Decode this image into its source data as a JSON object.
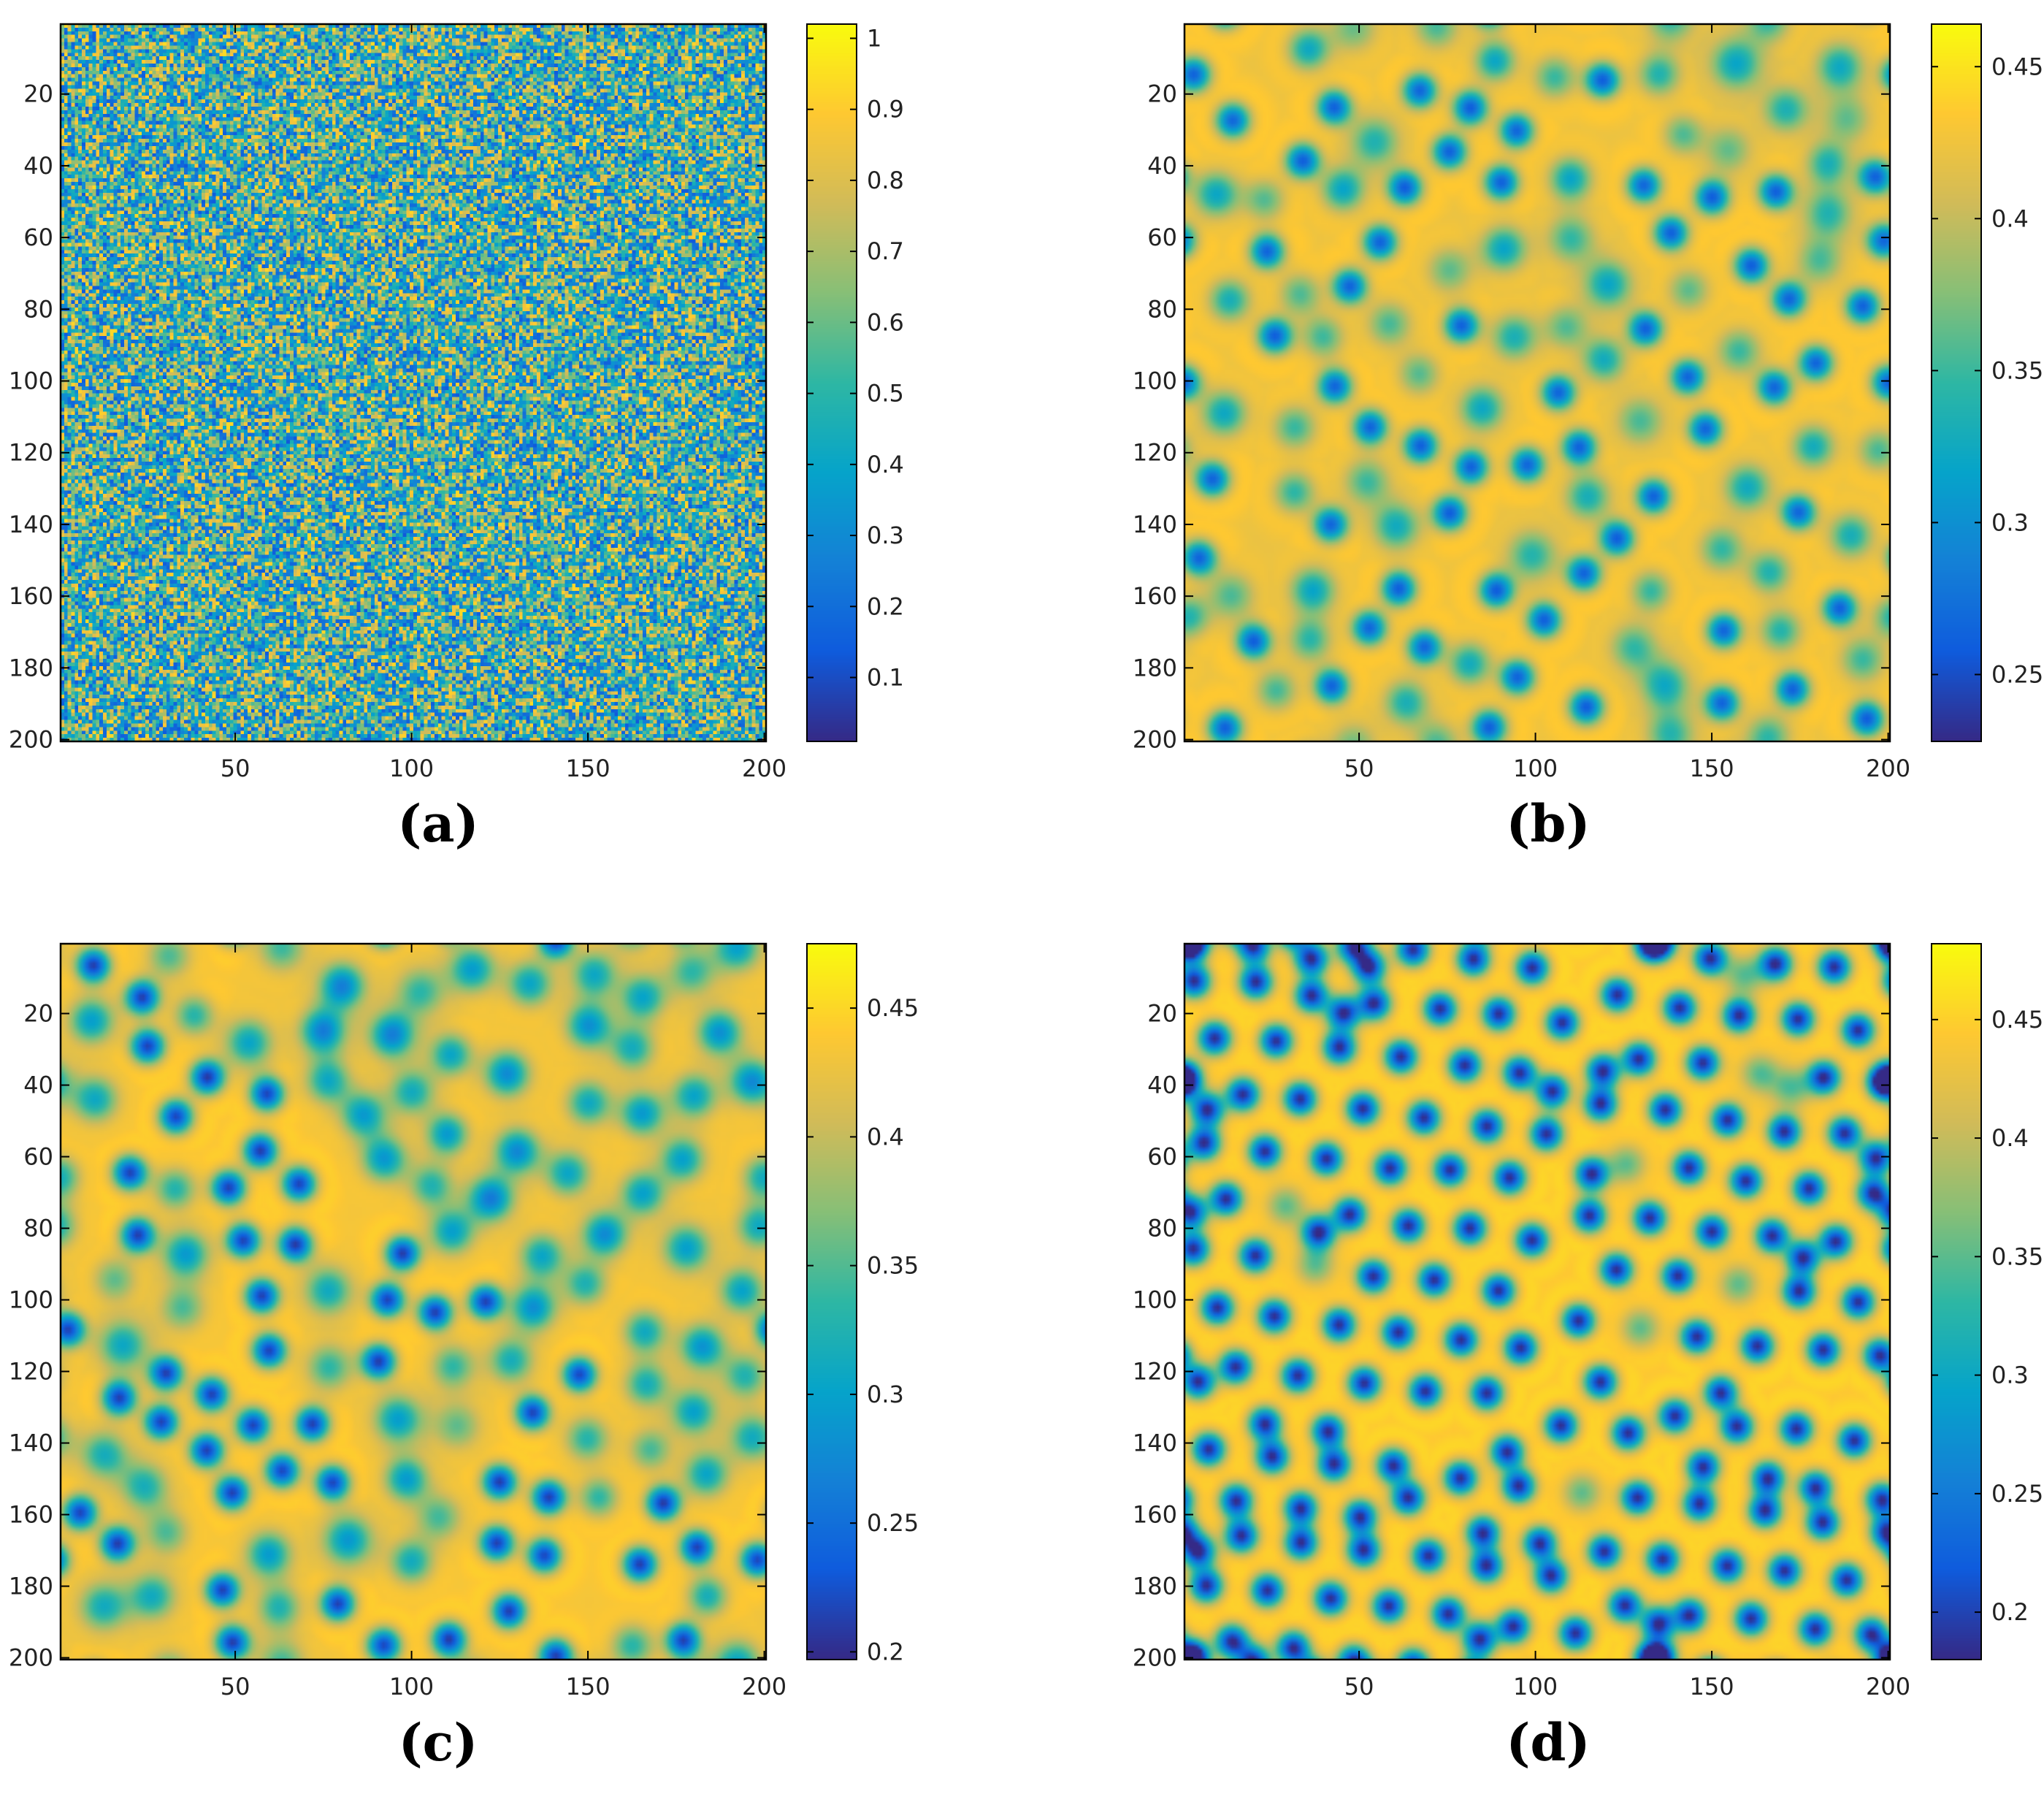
{
  "chart_data": [
    {
      "id": "a",
      "type": "heatmap",
      "caption": "(a)",
      "pattern": "random",
      "grid_size": [
        200,
        200
      ],
      "xlim": [
        1,
        200
      ],
      "ylim": [
        1,
        200
      ],
      "x_ticks": [
        50,
        100,
        150,
        200
      ],
      "x_tick_labels": [
        "50",
        "100",
        "150",
        "200"
      ],
      "y_ticks": [
        20,
        40,
        60,
        80,
        100,
        120,
        140,
        160,
        180,
        200
      ],
      "y_tick_labels": [
        "20",
        "40",
        "60",
        "80",
        "100",
        "120",
        "140",
        "160",
        "180",
        "200"
      ],
      "colorbar": {
        "range": [
          0.01,
          1.02
        ],
        "ticks": [
          0.1,
          0.2,
          0.3,
          0.4,
          0.5,
          0.6,
          0.7,
          0.8,
          0.9,
          1
        ],
        "tick_labels": [
          "0.1",
          "0.2",
          "0.3",
          "0.4",
          "0.5",
          "0.6",
          "0.7",
          "0.8",
          "0.9",
          "1"
        ]
      }
    },
    {
      "id": "b",
      "type": "heatmap",
      "caption": "(b)",
      "pattern": "spots-sparse",
      "grid_size": [
        200,
        200
      ],
      "xlim": [
        1,
        200
      ],
      "ylim": [
        1,
        200
      ],
      "x_ticks": [
        50,
        100,
        150,
        200
      ],
      "x_tick_labels": [
        "50",
        "100",
        "150",
        "200"
      ],
      "y_ticks": [
        20,
        40,
        60,
        80,
        100,
        120,
        140,
        160,
        180,
        200
      ],
      "y_tick_labels": [
        "20",
        "40",
        "60",
        "80",
        "100",
        "120",
        "140",
        "160",
        "180",
        "200"
      ],
      "colorbar": {
        "range": [
          0.228,
          0.464
        ],
        "ticks": [
          0.25,
          0.3,
          0.35,
          0.4,
          0.45
        ],
        "tick_labels": [
          "0.25",
          "0.3",
          "0.35",
          "0.4",
          "0.45"
        ]
      }
    },
    {
      "id": "c",
      "type": "heatmap",
      "caption": "(c)",
      "pattern": "spots-mixed",
      "grid_size": [
        200,
        200
      ],
      "xlim": [
        1,
        200
      ],
      "ylim": [
        1,
        200
      ],
      "x_ticks": [
        50,
        100,
        150,
        200
      ],
      "x_tick_labels": [
        "50",
        "100",
        "150",
        "200"
      ],
      "y_ticks": [
        20,
        40,
        60,
        80,
        100,
        120,
        140,
        160,
        180,
        200
      ],
      "y_tick_labels": [
        "20",
        "40",
        "60",
        "80",
        "100",
        "120",
        "140",
        "160",
        "180",
        "200"
      ],
      "colorbar": {
        "range": [
          0.197,
          0.475
        ],
        "ticks": [
          0.2,
          0.25,
          0.3,
          0.35,
          0.4,
          0.45
        ],
        "tick_labels": [
          "0.2",
          "0.25",
          "0.3",
          "0.35",
          "0.4",
          "0.45"
        ]
      }
    },
    {
      "id": "d",
      "type": "heatmap",
      "caption": "(d)",
      "pattern": "spots-hexagonal",
      "grid_size": [
        200,
        200
      ],
      "xlim": [
        1,
        200
      ],
      "ylim": [
        1,
        200
      ],
      "x_ticks": [
        50,
        100,
        150,
        200
      ],
      "x_tick_labels": [
        "50",
        "100",
        "150",
        "200"
      ],
      "y_ticks": [
        20,
        40,
        60,
        80,
        100,
        120,
        140,
        160,
        180,
        200
      ],
      "y_tick_labels": [
        "20",
        "40",
        "60",
        "80",
        "100",
        "120",
        "140",
        "160",
        "180",
        "200"
      ],
      "colorbar": {
        "range": [
          0.18,
          0.482
        ],
        "ticks": [
          0.2,
          0.25,
          0.3,
          0.35,
          0.4,
          0.45
        ],
        "tick_labels": [
          "0.2",
          "0.25",
          "0.3",
          "0.35",
          "0.4",
          "0.45"
        ]
      }
    }
  ],
  "colormap": {
    "name": "parula",
    "stops": [
      "#352a87",
      "#0f5cdd",
      "#1481d6",
      "#06a4ca",
      "#2eb7a4",
      "#87bf77",
      "#d1bb59",
      "#fec832",
      "#f9fb0e"
    ]
  }
}
